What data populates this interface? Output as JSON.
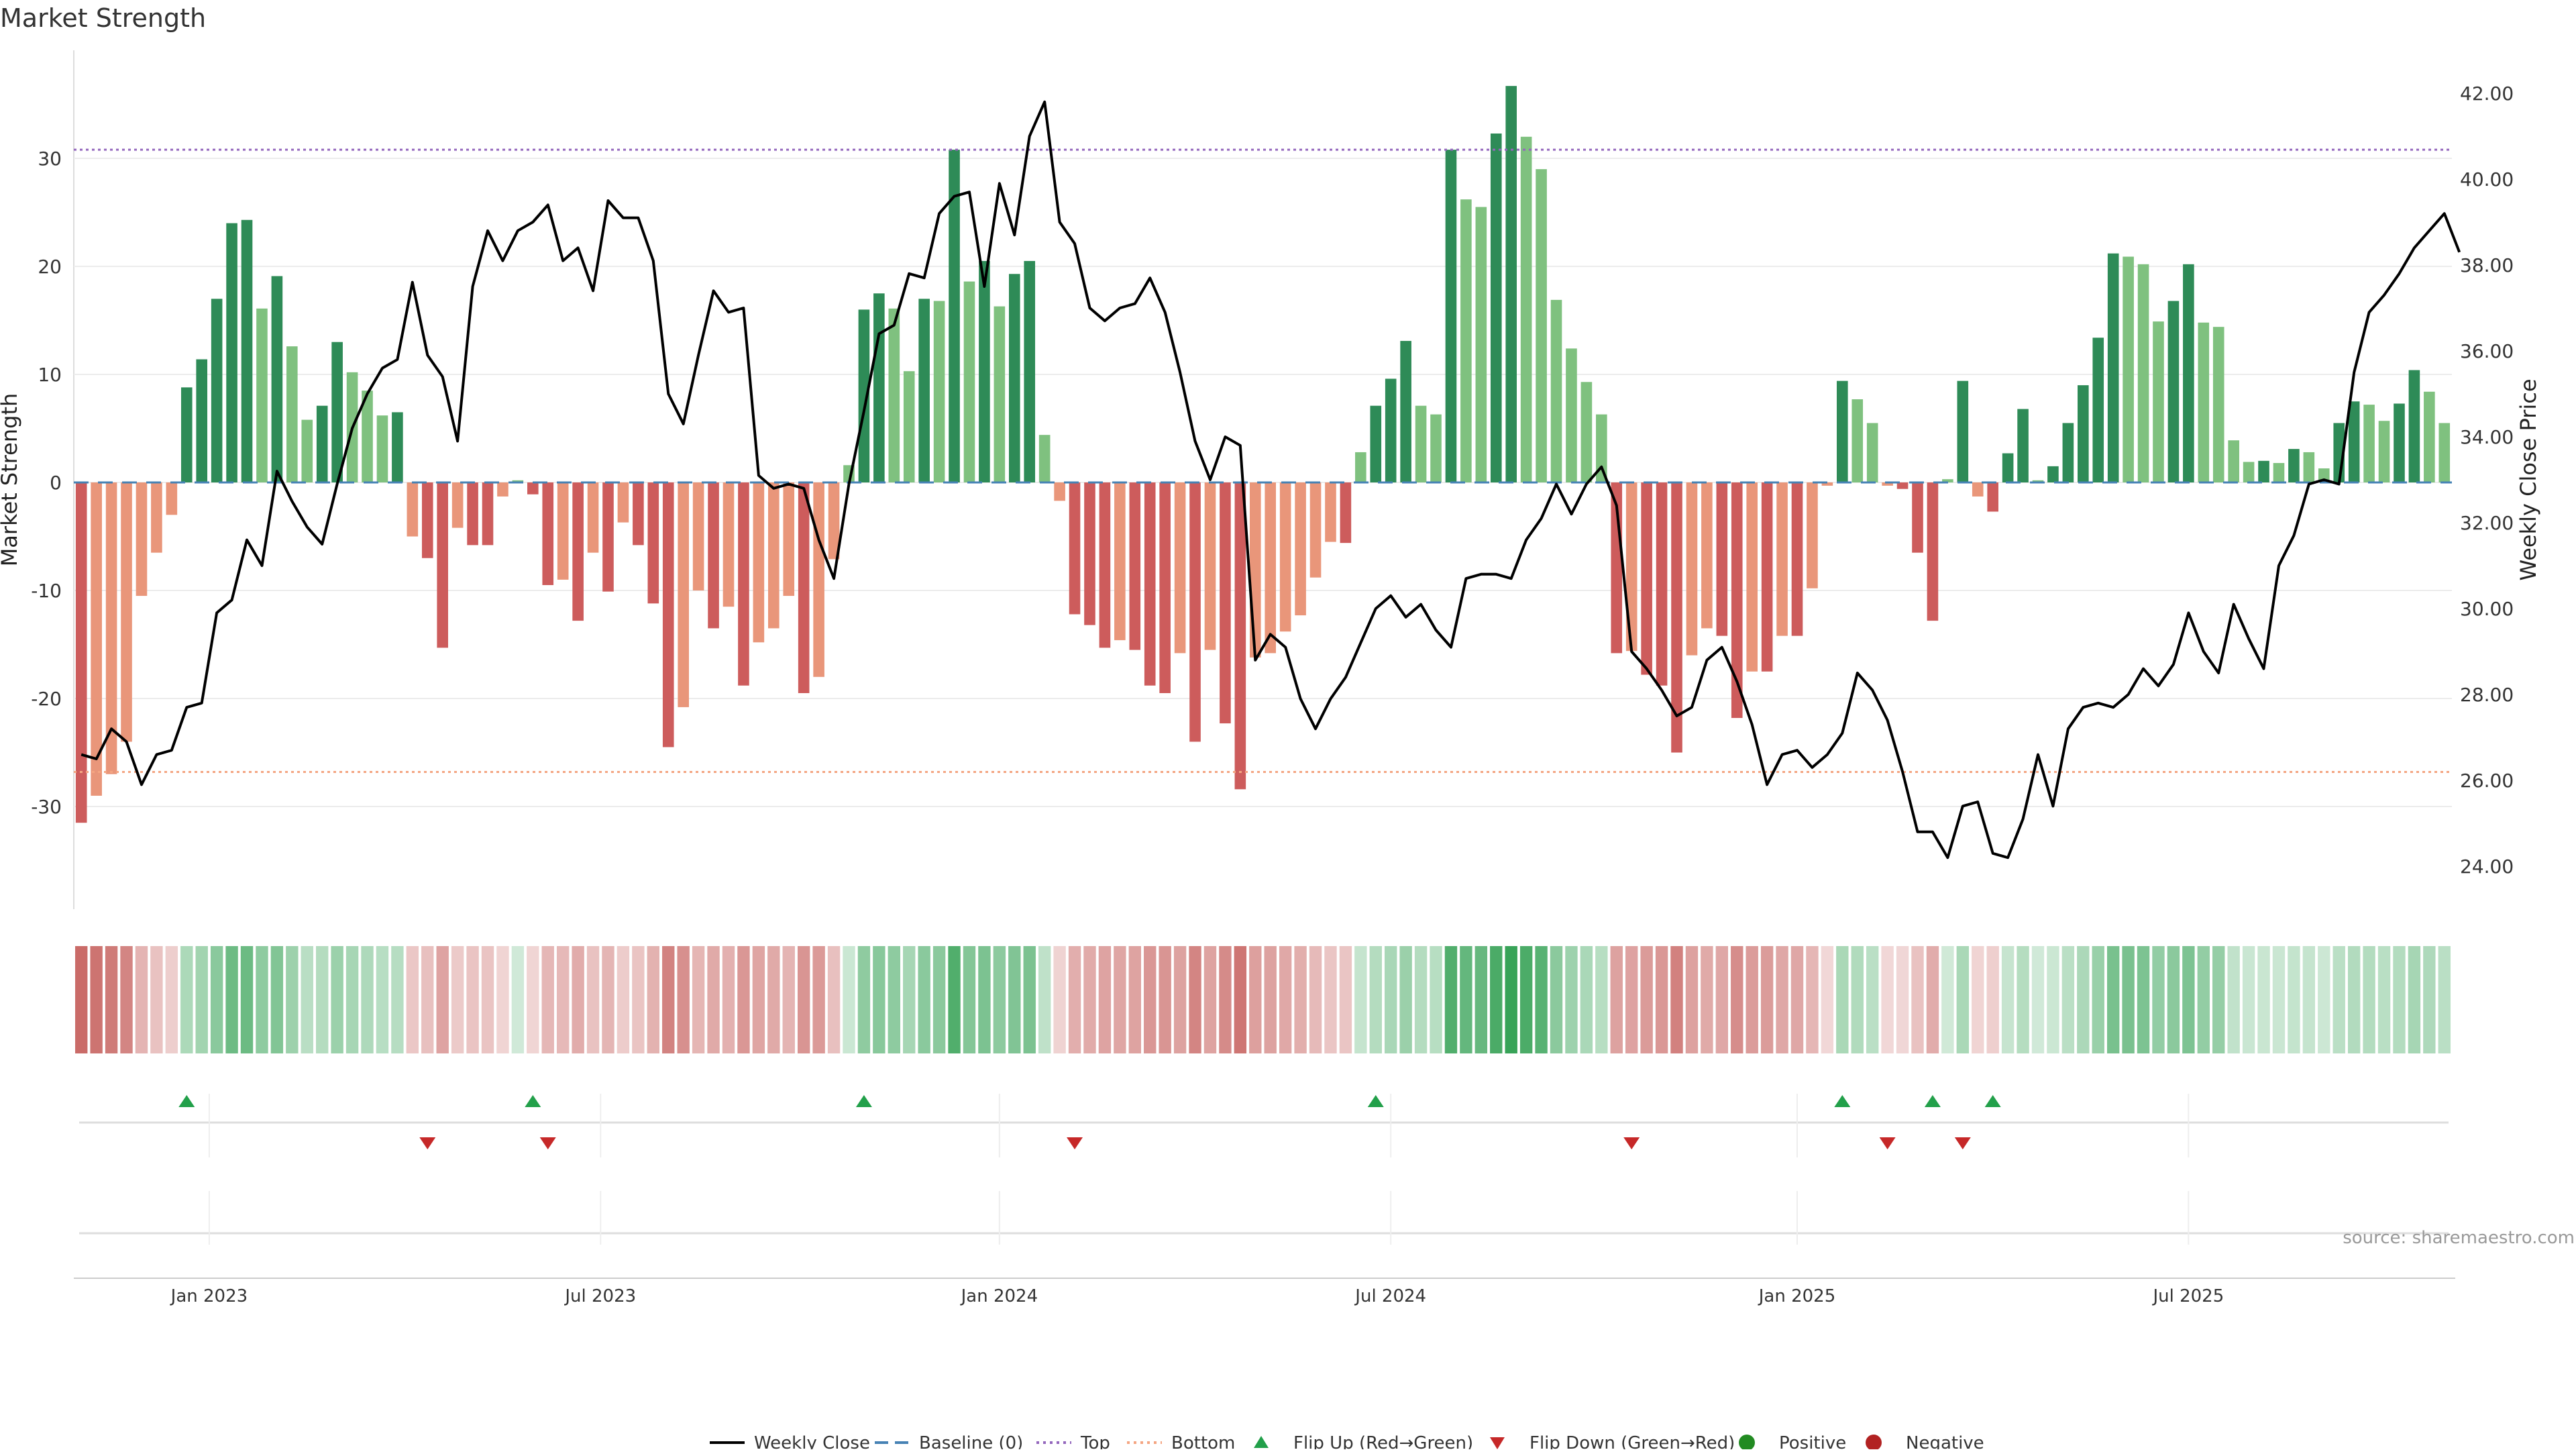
{
  "chart_data": {
    "type": "bar",
    "title": "Market Strength",
    "ylabel": "Market Strength",
    "y2label": "Weekly Close Price",
    "ylim": [
      -39.5,
      40.0
    ],
    "y2lim": [
      23.0,
      43.0
    ],
    "yticks": [
      -30,
      -20,
      -10,
      0,
      10,
      20,
      30
    ],
    "y2ticks": [
      24.0,
      26.0,
      28.0,
      30.0,
      32.0,
      34.0,
      36.0,
      38.0,
      40.0,
      42.0
    ],
    "y2tick_labels": [
      "24.00",
      "26.00",
      "28.00",
      "30.00",
      "32.00",
      "34.00",
      "36.00",
      "38.00",
      "40.00",
      "42.00"
    ],
    "top_threshold": 30.8,
    "bottom_threshold": -26.8,
    "x_tick_labels": [
      "Jan 2023",
      "Jul 2023",
      "Jan 2024",
      "Jul 2024",
      "Jan 2025",
      "Jul 2025"
    ],
    "x_tick_weeks": [
      8.5,
      34.5,
      61,
      87,
      114,
      140
    ],
    "source_note": "source: sharemaestro.com",
    "series": [
      {
        "name": "Market Strength",
        "values": [
          -31.5,
          -29,
          -27,
          -24,
          -10.5,
          -6.5,
          -3,
          8.8,
          11.4,
          17,
          24,
          24.3,
          16.1,
          19.1,
          12.6,
          5.8,
          7.1,
          13,
          10.2,
          8.5,
          6.2,
          6.5,
          -5,
          -7,
          -15.3,
          -4.2,
          -5.8,
          -5.8,
          -1.3,
          0.2,
          -1.1,
          -9.5,
          -9,
          -12.8,
          -6.5,
          -10.1,
          -3.7,
          -5.8,
          -11.2,
          -24.5,
          -20.8,
          -10,
          -13.5,
          -11.5,
          -18.8,
          -14.8,
          -13.5,
          -10.5,
          -19.5,
          -18,
          -7.1,
          1.6,
          16,
          17.5,
          16.1,
          10.3,
          17,
          16.8,
          30.8,
          18.6,
          20.5,
          16.3,
          19.3,
          20.5,
          4.4,
          -1.7,
          -12.2,
          -13.2,
          -15.3,
          -14.6,
          -15.5,
          -18.8,
          -19.5,
          -15.8,
          -24,
          -15.5,
          -22.3,
          -28.4,
          -16.2,
          -15.8,
          -13.8,
          -12.3,
          -8.8,
          -5.5,
          -5.6,
          2.8,
          7.1,
          9.6,
          13.1,
          7.1,
          6.3,
          30.8,
          26.2,
          25.5,
          32.3,
          36.7,
          32,
          29,
          16.9,
          12.4,
          9.3,
          6.3,
          -15.8,
          -15.6,
          -17.8,
          -18.8,
          -25,
          -16,
          -13.5,
          -14.2,
          -21.8,
          -17.5,
          -17.5,
          -14.2,
          -14.2,
          -9.8,
          -0.3,
          9.4,
          7.7,
          5.5,
          -0.3,
          -0.6,
          -6.5,
          -12.8,
          0.3,
          9.4,
          -1.3,
          -2.7,
          2.7,
          6.8,
          0.2,
          1.5,
          5.5,
          9,
          13.4,
          21.2,
          20.9,
          20.2,
          14.9,
          16.8,
          20.2,
          14.8,
          14.4,
          3.9,
          1.9,
          2,
          1.8,
          3.1,
          2.8,
          1.3,
          5.5,
          7.5,
          7.2,
          5.7,
          7.3,
          10.4,
          8.4,
          5.5
        ]
      },
      {
        "name": "Weekly Close",
        "values": [
          26.6,
          26.5,
          27.2,
          26.9,
          25.9,
          26.6,
          26.7,
          27.7,
          27.8,
          29.9,
          30.2,
          31.6,
          31.0,
          33.2,
          32.5,
          31.9,
          31.5,
          32.9,
          34.2,
          35.0,
          35.6,
          35.8,
          37.6,
          35.9,
          35.4,
          33.9,
          37.5,
          38.8,
          38.1,
          38.8,
          39.0,
          39.4,
          38.1,
          38.4,
          37.4,
          39.5,
          39.1,
          39.1,
          38.1,
          35.0,
          34.3,
          35.9,
          37.4,
          36.9,
          37.0,
          33.1,
          32.8,
          32.9,
          32.8,
          31.6,
          30.7,
          32.9,
          34.6,
          36.4,
          36.6,
          37.8,
          37.7,
          39.2,
          39.6,
          39.7,
          37.5,
          39.9,
          38.7,
          41.0,
          41.8,
          39.0,
          38.5,
          37.0,
          36.7,
          37.0,
          37.1,
          37.7,
          36.9,
          35.5,
          33.9,
          33.0,
          34.0,
          33.8,
          28.8,
          29.4,
          29.1,
          27.9,
          27.2,
          27.9,
          28.4,
          29.2,
          30.0,
          30.3,
          29.8,
          30.1,
          29.5,
          29.1,
          30.7,
          30.8,
          30.8,
          30.7,
          31.6,
          32.1,
          32.9,
          32.2,
          32.9,
          33.3,
          32.4,
          29.0,
          28.6,
          28.1,
          27.5,
          27.7,
          28.8,
          29.1,
          28.3,
          27.3,
          25.9,
          26.6,
          26.7,
          26.3,
          26.6,
          27.1,
          28.5,
          28.1,
          27.4,
          26.2,
          24.8,
          24.8,
          24.2,
          25.4,
          25.5,
          24.3,
          24.2,
          25.1,
          26.6,
          25.4,
          27.2,
          27.7,
          27.8,
          27.7,
          28.0,
          28.6,
          28.2,
          28.7,
          29.9,
          29.0,
          28.5,
          30.1,
          29.3,
          28.6,
          31.0,
          31.7,
          32.9,
          33.0,
          32.9,
          35.5,
          36.9,
          37.3,
          37.8,
          38.4,
          38.8,
          39.2,
          38.3
        ]
      }
    ],
    "flip_up_weeks": [
      7,
      30,
      52,
      86,
      117,
      123,
      127
    ],
    "flip_down_weeks": [
      23,
      31,
      66,
      103,
      120,
      125
    ],
    "legend": {
      "weekly_close": "Weekly Close",
      "baseline": "Baseline (0)",
      "top": "Top",
      "bottom": "Bottom",
      "flip_up": "Flip Up (Red→Green)",
      "flip_down": "Flip Down (Green→Red)",
      "positive": "Positive",
      "negative": "Negative"
    },
    "colors": {
      "pos_dark": "#2e8b57",
      "pos_light": "#7fc17f",
      "neg_dark": "#cd5c5c",
      "neg_light": "#e9967a",
      "line": "#000000",
      "baseline": "#4682b4",
      "top": "#9467bd",
      "bottom": "#f4a582",
      "flip_up": "#22a04a",
      "flip_down": "#c62828",
      "positive_dot": "#228b22",
      "negative_dot": "#b22222"
    },
    "legend_position": "bottom-center",
    "grid": true
  }
}
